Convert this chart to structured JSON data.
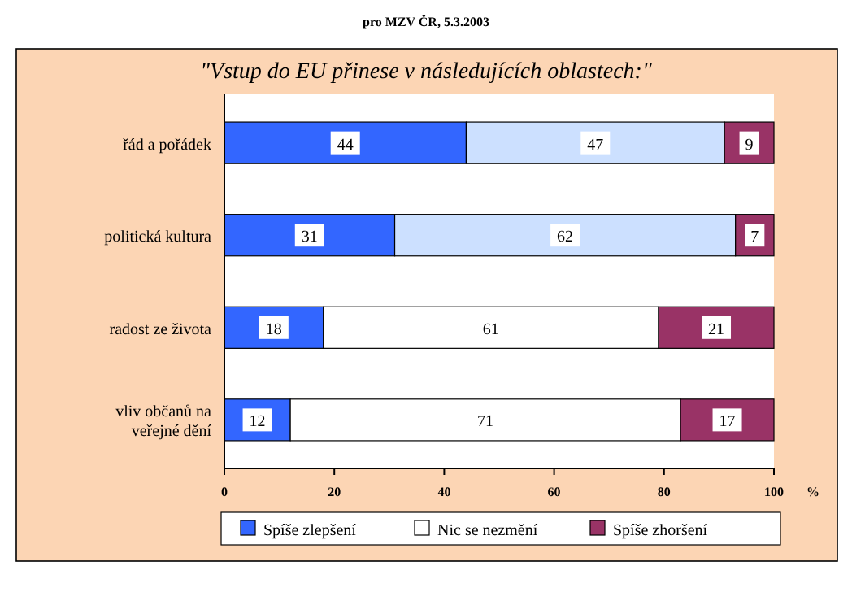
{
  "chart_data": {
    "type": "bar",
    "orientation": "horizontal",
    "stacked": true,
    "subtitle": "pro MZV ČR, 5.3.2003",
    "title": "\"Vstup do EU přinese v následujících oblastech:\"",
    "xlabel": "%",
    "categories": [
      "řád a pořádek",
      "politická kultura",
      "radost ze života",
      "vliv občanů na veřejné dění"
    ],
    "series": [
      {
        "name": "Spíše zlepšení",
        "color": "#3366ff",
        "values": [
          44,
          31,
          18,
          12
        ]
      },
      {
        "name": "Nic se nezmění",
        "colors": [
          "#cce0ff",
          "#cce0ff",
          "#ffffff",
          "#ffffff"
        ],
        "values": [
          47,
          62,
          61,
          71
        ]
      },
      {
        "name": "Spíše zhoršení",
        "color": "#993366",
        "values": [
          9,
          7,
          21,
          17
        ]
      }
    ],
    "xlim": [
      0,
      100
    ],
    "xticks": [
      0,
      20,
      40,
      60,
      80,
      100
    ],
    "data_labels": true,
    "legend": "bottom"
  }
}
